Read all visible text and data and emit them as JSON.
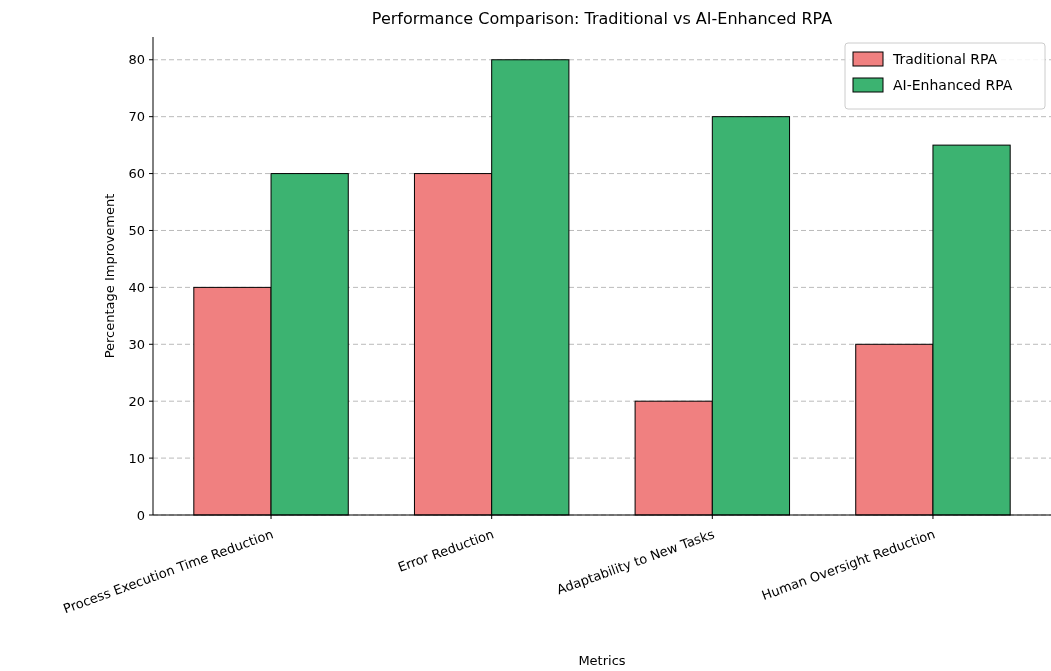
{
  "chart_data": {
    "type": "bar",
    "title": "Performance Comparison: Traditional vs AI-Enhanced RPA",
    "xlabel": "Metrics",
    "ylabel": "Percentage Improvement",
    "categories": [
      "Process Execution Time Reduction",
      "Error Reduction",
      "Adaptability to New Tasks",
      "Human Oversight Reduction"
    ],
    "series": [
      {
        "name": "Traditional RPA",
        "color": "#f08080",
        "values": [
          40,
          60,
          20,
          30
        ]
      },
      {
        "name": "AI-Enhanced RPA",
        "color": "#3cb371",
        "values": [
          60,
          80,
          70,
          65
        ]
      }
    ],
    "ylim": [
      0,
      84
    ],
    "yticks": [
      0,
      10,
      20,
      30,
      40,
      50,
      60,
      70,
      80
    ],
    "grid": "y",
    "legend": "top right"
  }
}
